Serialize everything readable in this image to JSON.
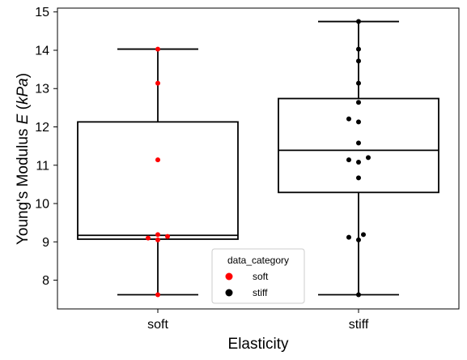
{
  "chart_data": {
    "type": "box",
    "xlabel": "Elasticity",
    "ylabel": "Young's Modulus E (kPa)",
    "ylabel_parts": {
      "prefix": "Young's Modulus ",
      "symbol": "E",
      "unit_open": " (",
      "unit": "kPa",
      "unit_close": ")"
    },
    "ylim": [
      7.25,
      15.1
    ],
    "yticks": [
      8,
      9,
      10,
      11,
      12,
      13,
      14,
      15
    ],
    "categories": [
      "soft",
      "stiff"
    ],
    "boxes": [
      {
        "category": "soft",
        "min": 7.62,
        "q1": 9.07,
        "median": 9.17,
        "q3": 12.13,
        "max": 14.03
      },
      {
        "category": "stiff",
        "min": 7.62,
        "q1": 10.29,
        "median": 11.39,
        "q3": 12.74,
        "max": 14.75
      }
    ],
    "points": [
      {
        "category": "soft",
        "values": [
          7.62,
          9.05,
          9.1,
          9.14,
          9.19,
          11.14,
          13.14,
          14.03
        ]
      },
      {
        "category": "stiff",
        "values": [
          7.62,
          9.05,
          9.12,
          9.19,
          10.67,
          11.08,
          11.14,
          11.2,
          11.58,
          12.13,
          12.21,
          12.64,
          13.14,
          13.72,
          14.03,
          14.75
        ]
      }
    ],
    "legend": {
      "title": "data_category",
      "position": "lower-center",
      "entries": [
        {
          "label": "soft",
          "color": "#ff0000"
        },
        {
          "label": "stiff",
          "color": "#000000"
        }
      ]
    },
    "colors": {
      "soft": "#ff0000",
      "stiff": "#000000",
      "box_line": "#000000"
    },
    "grid": false
  }
}
